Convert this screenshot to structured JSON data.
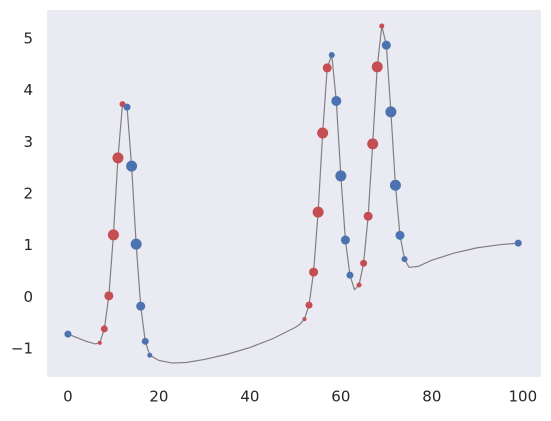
{
  "chart_data": {
    "type": "line",
    "xlim": [
      -4.6,
      104
    ],
    "ylim": [
      -1.54,
      5.56
    ],
    "xticks": [
      0,
      20,
      40,
      60,
      80,
      100
    ],
    "yticks": [
      {
        "value": -1,
        "label": "−1"
      },
      0,
      1,
      2,
      3,
      4,
      5
    ],
    "grid": false,
    "series": [
      {
        "type": "line",
        "color": "#808080",
        "x": [
          0,
          2,
          4,
          6,
          7,
          8,
          9,
          10,
          11,
          12,
          13,
          14,
          15,
          16,
          17,
          18,
          20,
          23,
          26,
          30,
          35,
          40,
          45,
          50,
          51,
          52,
          53,
          54,
          55,
          56,
          57,
          58,
          59,
          60,
          61,
          62,
          63,
          64,
          65,
          66,
          67,
          68,
          69,
          70,
          71,
          72,
          73,
          74,
          75,
          77,
          80,
          85,
          90,
          95,
          99
        ],
        "values": [
          -0.71,
          -0.78,
          -0.85,
          -0.9,
          -0.88,
          -0.61,
          0.03,
          1.21,
          2.7,
          3.74,
          3.68,
          2.54,
          1.03,
          -0.17,
          -0.85,
          -1.12,
          -1.22,
          -1.27,
          -1.26,
          -1.2,
          -1.1,
          -0.97,
          -0.8,
          -0.58,
          -0.52,
          -0.42,
          -0.15,
          0.49,
          1.65,
          3.18,
          4.44,
          4.69,
          3.8,
          2.35,
          1.11,
          0.43,
          0.15,
          0.24,
          0.66,
          1.57,
          2.97,
          4.46,
          5.25,
          4.88,
          3.59,
          2.17,
          1.2,
          0.74,
          0.58,
          0.6,
          0.72,
          0.86,
          0.96,
          1.02,
          1.05
        ]
      },
      {
        "type": "scatter",
        "color": "#c44e52",
        "x": [
          7,
          8,
          9,
          10,
          11,
          12,
          52,
          53,
          54,
          55,
          56,
          57,
          64,
          65,
          66,
          67,
          68,
          69
        ],
        "values": [
          -0.88,
          -0.61,
          0.03,
          1.21,
          2.7,
          3.74,
          -0.42,
          -0.15,
          0.49,
          1.65,
          3.18,
          4.44,
          0.24,
          0.66,
          1.57,
          2.97,
          4.46,
          5.25
        ],
        "sizes": [
          2,
          3.5,
          4.5,
          5.5,
          5.5,
          3,
          2,
          3.5,
          4.5,
          5.5,
          5.5,
          4.5,
          2.5,
          3.5,
          4.5,
          5.5,
          5.5,
          2.5
        ]
      },
      {
        "type": "scatter",
        "color": "#4c72b0",
        "x": [
          0,
          13,
          14,
          15,
          16,
          17,
          18,
          58,
          59,
          60,
          61,
          62,
          70,
          71,
          72,
          73,
          74,
          99
        ],
        "values": [
          -0.71,
          3.68,
          2.54,
          1.03,
          -0.17,
          -0.85,
          -1.12,
          4.69,
          3.8,
          2.35,
          1.11,
          0.43,
          4.88,
          3.59,
          2.17,
          1.2,
          0.74,
          1.05
        ],
        "sizes": [
          3.5,
          3.5,
          5.5,
          5.5,
          4.5,
          3.5,
          2.5,
          3,
          5,
          5.5,
          4.5,
          3.5,
          4.5,
          5.5,
          5.5,
          4.5,
          3,
          3.5
        ]
      }
    ]
  }
}
